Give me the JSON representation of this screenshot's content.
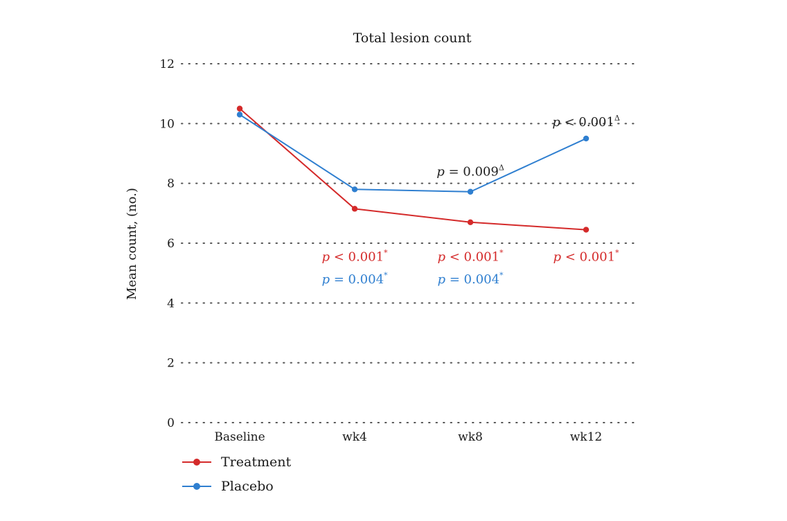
{
  "chart_data": {
    "type": "line",
    "title": "Total lesion count",
    "xlabel": "",
    "ylabel": "Mean count, (no.)",
    "categories": [
      "Baseline",
      "wk4",
      "wk8",
      "wk12"
    ],
    "ylim": [
      0,
      12
    ],
    "yticks": [
      0,
      2,
      4,
      6,
      8,
      10,
      12
    ],
    "grid": true,
    "legend_position": "bottom-left",
    "series": [
      {
        "name": "Treatment",
        "color": "#d42a2a",
        "values": [
          10.5,
          7.15,
          6.7,
          6.45
        ]
      },
      {
        "name": "Placebo",
        "color": "#2f7fd0",
        "values": [
          10.3,
          7.8,
          7.72,
          9.5
        ]
      }
    ],
    "annotations": [
      {
        "text": "p = 0.009",
        "sup": "Δ",
        "color": "#222222",
        "x": "wk8",
        "y": 8.4
      },
      {
        "text": "p < 0.001",
        "sup": "Δ",
        "color": "#222222",
        "x": "wk12",
        "y": 10.05
      },
      {
        "text": "p < 0.001",
        "sup": "*",
        "color": "#d42a2a",
        "x": "wk4",
        "y": 5.55
      },
      {
        "text": "p < 0.001",
        "sup": "*",
        "color": "#d42a2a",
        "x": "wk8",
        "y": 5.55
      },
      {
        "text": "p < 0.001",
        "sup": "*",
        "color": "#d42a2a",
        "x": "wk12",
        "y": 5.55
      },
      {
        "text": "p = 0.004",
        "sup": "*",
        "color": "#2f7fd0",
        "x": "wk4",
        "y": 4.8
      },
      {
        "text": "p = 0.004",
        "sup": "*",
        "color": "#2f7fd0",
        "x": "wk8",
        "y": 4.8
      }
    ]
  }
}
